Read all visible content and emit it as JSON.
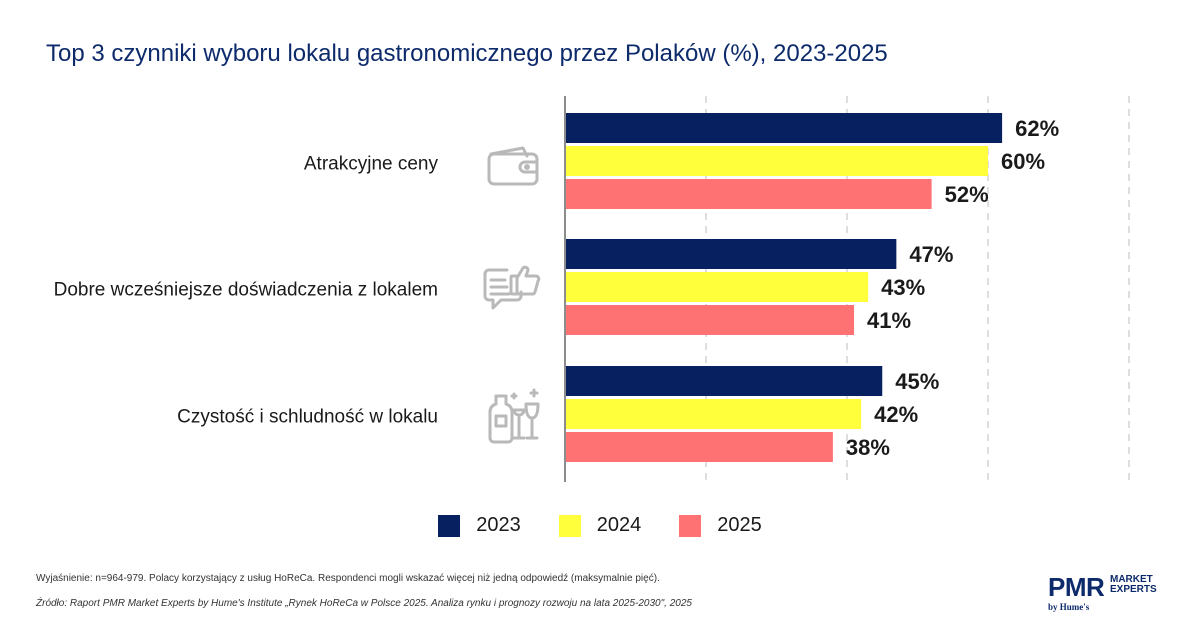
{
  "title": "Top 3 czynniki wyboru lokalu gastronomicznego przez Polaków (%), 2023-2025",
  "chart_data": {
    "type": "bar",
    "orientation": "horizontal",
    "title": "Top 3 czynniki wyboru lokalu gastronomicznego przez Polaków (%), 2023-2025",
    "categories": [
      "Atrakcyjne ceny",
      "Dobre wcześniejsze doświadczenia z lokalem",
      "Czystość i schludność w lokalu"
    ],
    "category_icons": [
      "wallet-icon",
      "thumbs-up-icon",
      "cleaning-icon"
    ],
    "series": [
      {
        "name": "2023",
        "values": [
          62,
          47,
          45
        ],
        "labels": [
          "62%",
          "47%",
          "45%"
        ],
        "color": "#07205f"
      },
      {
        "name": "2024",
        "values": [
          60,
          43,
          42
        ],
        "labels": [
          "60%",
          "43%",
          "42%"
        ],
        "color": "#ffff3b"
      },
      {
        "name": "2025",
        "values": [
          52,
          41,
          38
        ],
        "labels": [
          "52%",
          "41%",
          "38%"
        ],
        "color": "#ff7273"
      }
    ],
    "xlim": [
      0,
      80
    ],
    "grid": true,
    "legend_position": "bottom"
  },
  "notes": {
    "explanation": "Wyjaśnienie: n=964-979. Polacy korzystający z usług HoReCa. Respondenci mogli wskazać więcej niż jedną odpowiedź (maksymalnie pięć).",
    "source": "Źródło: Raport PMR Market Experts by Hume's Institute „Rynek HoReCa w Polsce 2025. Analiza rynku i prognozy rozwoju na lata 2025-2030\", 2025"
  },
  "logo": {
    "brand": "PMR",
    "line1": "MARKET",
    "line2": "EXPERTS",
    "tagline": "by Hume's"
  }
}
